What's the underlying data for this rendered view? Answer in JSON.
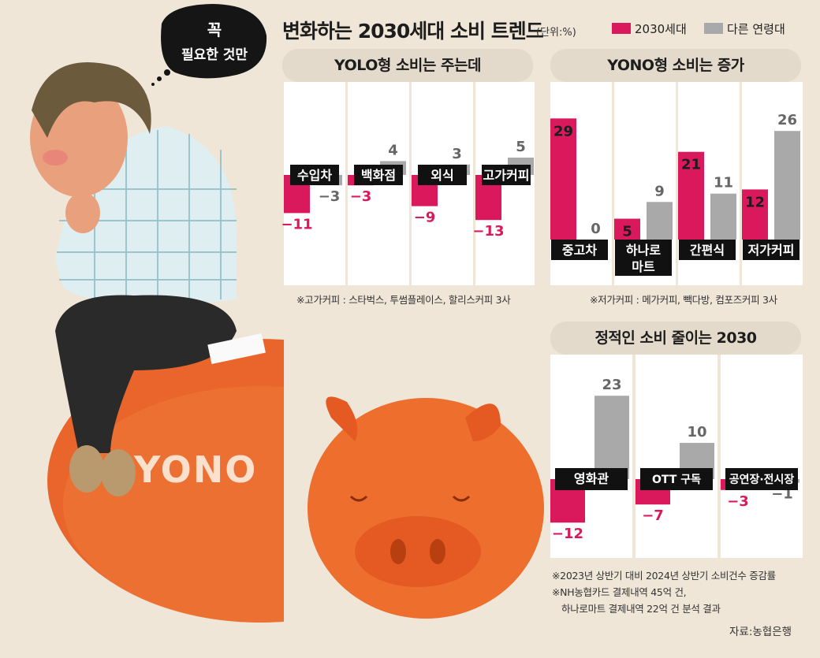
{
  "header": {
    "title": "변화하는 2030세대 소비 트렌드",
    "unit": "(단위:%)",
    "legend": [
      {
        "label": "2030세대",
        "color": "#d9195c"
      },
      {
        "label": "다른 연령대",
        "color": "#a9a9a9"
      }
    ]
  },
  "illustration": {
    "speech_bubble": [
      "꼭",
      "필요한 것만"
    ],
    "pig_text": "YONO"
  },
  "chart_data": [
    {
      "type": "bar",
      "title": "YOLO형 소비는 주는데",
      "categories": [
        "수입차",
        "백화점",
        "외식",
        "고가커피"
      ],
      "series": [
        {
          "name": "2030세대",
          "values": [
            -11,
            -3,
            -9,
            -13
          ]
        },
        {
          "name": "다른 연령대",
          "values": [
            -3,
            4,
            3,
            5
          ]
        }
      ],
      "note": "※고가커피 : 스타벅스, 투썸플레이스, 할리스커피 3사"
    },
    {
      "type": "bar",
      "title": "YONO형 소비는 증가",
      "categories": [
        "중고차",
        "하나로\n마트",
        "간편식",
        "저가커피"
      ],
      "series": [
        {
          "name": "2030세대",
          "values": [
            29,
            5,
            21,
            12
          ]
        },
        {
          "name": "다른 연령대",
          "values": [
            0,
            9,
            11,
            26
          ]
        }
      ],
      "note": "※저가커피 : 메가커피, 빽다방, 컴포즈커피 3사"
    },
    {
      "type": "bar",
      "title": "정적인 소비 줄이는 2030",
      "categories": [
        "영화관",
        "OTT 구독",
        "공연장·전시장"
      ],
      "series": [
        {
          "name": "2030세대",
          "values": [
            -12,
            -7,
            -3
          ]
        },
        {
          "name": "다른 연령대",
          "values": [
            23,
            10,
            -1
          ]
        }
      ]
    }
  ],
  "footer": {
    "notes": [
      "※2023년 상반기 대비 2024년 상반기 소비건수 증감률",
      "※NH농협카드 결제내역 45억 건,",
      "하나로마트 결제내역 22억 건 분석 결과"
    ],
    "source": "자료:농협은행"
  }
}
